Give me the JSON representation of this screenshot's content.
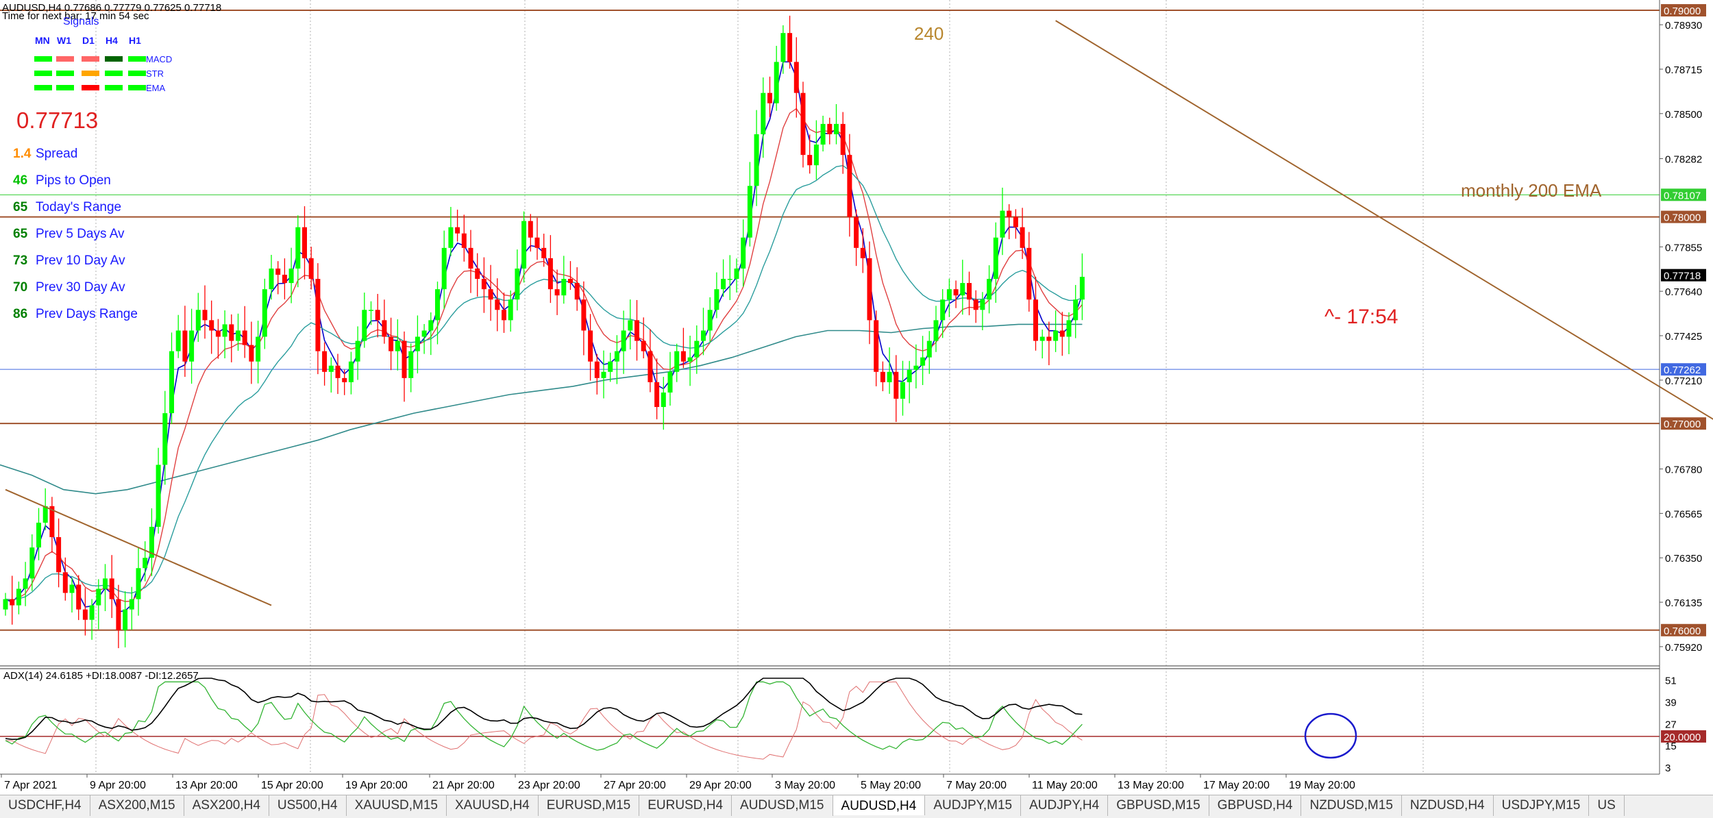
{
  "header": {
    "symbol_line": "AUDUSD,H4  0.77686 0.77779 0.77625 0.77718",
    "timer_text": "Time for next bar: 17 min 54 sec"
  },
  "signals": {
    "title": "Signals",
    "timeframes": [
      "MN",
      "W1",
      "D1",
      "H4",
      "H1"
    ],
    "rows": [
      {
        "label": "MACD",
        "colors": [
          "#00ff00",
          "#ff6666",
          "#ff6666",
          "#006400",
          "#00ff00"
        ]
      },
      {
        "label": "STR",
        "colors": [
          "#00ff00",
          "#00ff00",
          "#ffa500",
          "#00ff00",
          "#00ff00"
        ]
      },
      {
        "label": "EMA",
        "colors": [
          "#00ff00",
          "#00ff00",
          "#ff0000",
          "#00ff00",
          "#00ff00"
        ]
      }
    ]
  },
  "info_panel": {
    "price": "0.77713",
    "rows": [
      {
        "value": "1.4",
        "label": "Spread",
        "value_color": "#ff8c00"
      },
      {
        "value": "46",
        "label": "Pips to Open",
        "value_color": "#00c000"
      },
      {
        "value": "65",
        "label": "Today's Range",
        "value_color": "#008000"
      },
      {
        "value": "65",
        "label": "Prev 5 Days Av",
        "value_color": "#008000"
      },
      {
        "value": "73",
        "label": "Prev 10 Day Av",
        "value_color": "#008000"
      },
      {
        "value": "70",
        "label": "Prev 30 Day Av",
        "value_color": "#008000"
      },
      {
        "value": "86",
        "label": "Prev Days Range",
        "value_color": "#008000"
      }
    ]
  },
  "annotations": {
    "peak_label": "240",
    "ema_label": "monthly 200 EMA",
    "countdown_label": "^- 17:54"
  },
  "price_axis": {
    "ticks": [
      "0.78930",
      "0.78715",
      "0.78500",
      "0.78282",
      "0.77855",
      "0.77640",
      "0.77425",
      "0.77210",
      "0.76780",
      "0.76565",
      "0.76350",
      "0.76135",
      "0.75920"
    ],
    "tick_values": [
      0.7893,
      0.78715,
      0.785,
      0.78282,
      0.77855,
      0.7764,
      0.77425,
      0.7721,
      0.7678,
      0.76565,
      0.7635,
      0.76135,
      0.7592
    ],
    "price_range": [
      0.7585,
      0.7901
    ],
    "levels": [
      {
        "label": "0.79000",
        "value": 0.79,
        "color": "#a0522d"
      },
      {
        "label": "0.78107",
        "value": 0.78107,
        "color": "#32cd32"
      },
      {
        "label": "0.78000",
        "value": 0.78,
        "color": "#a0522d"
      },
      {
        "label": "0.77718",
        "value": 0.77718,
        "color": "#000000"
      },
      {
        "label": "0.77262",
        "value": 0.77262,
        "color": "#4169e1"
      },
      {
        "label": "0.77000",
        "value": 0.77,
        "color": "#a0522d"
      },
      {
        "label": "0.76000",
        "value": 0.76,
        "color": "#a0522d"
      }
    ]
  },
  "adx": {
    "label": "ADX(14) 24.6185 +DI:18.0087 -DI:12.2657",
    "ticks": [
      "51",
      "39",
      "27",
      "15",
      "3"
    ],
    "tick_values": [
      51,
      39,
      27,
      15,
      3
    ],
    "level_label": "20.0000",
    "level_value": 20,
    "range": [
      0,
      55
    ]
  },
  "time_axis": {
    "labels": [
      "7 Apr 2021",
      "9 Apr 20:00",
      "13 Apr 20:00",
      "15 Apr 20:00",
      "19 Apr 20:00",
      "21 Apr 20:00",
      "23 Apr 20:00",
      "27 Apr 20:00",
      "29 Apr 20:00",
      "3 May 20:00",
      "5 May 20:00",
      "7 May 20:00",
      "11 May 20:00",
      "13 May 20:00",
      "17 May 20:00",
      "19 May 20:00"
    ]
  },
  "tabs": [
    "USDCHF,H4",
    "ASX200,M15",
    "ASX200,H4",
    "US500,H4",
    "XAUUSD,M15",
    "XAUUSD,H4",
    "EURUSD,M15",
    "EURUSD,H4",
    "AUDUSD,M15",
    "AUDUSD,H4",
    "AUDJPY,M15",
    "AUDJPY,H4",
    "GBPUSD,M15",
    "GBPUSD,H4",
    "NZDUSD,M15",
    "NZDUSD,H4",
    "USDJPY,M15",
    "US"
  ],
  "active_tab_index": 9,
  "colors": {
    "bull": "#00ff00",
    "bear": "#ff0000",
    "ema_fast": "#0000cd",
    "ema_mid": "#e04040",
    "ema_slow": "#2a9d9d",
    "ema_200": "#2f8a8a",
    "trendline": "#a0642d",
    "adx_line": "#000000",
    "plus_di": "#32b432",
    "minus_di": "#e07070"
  },
  "chart_data": {
    "type": "candlestick",
    "symbol": "AUDUSD",
    "timeframe": "H4",
    "close_series": [
      0.7615,
      0.7612,
      0.762,
      0.7625,
      0.764,
      0.7652,
      0.766,
      0.7645,
      0.7628,
      0.7618,
      0.7622,
      0.761,
      0.7605,
      0.7612,
      0.762,
      0.7625,
      0.7615,
      0.76,
      0.761,
      0.7615,
      0.763,
      0.7635,
      0.765,
      0.768,
      0.7705,
      0.7735,
      0.7745,
      0.773,
      0.7745,
      0.7755,
      0.775,
      0.7745,
      0.7742,
      0.7748,
      0.774,
      0.7745,
      0.7738,
      0.773,
      0.7742,
      0.7765,
      0.7775,
      0.7772,
      0.7768,
      0.7775,
      0.7795,
      0.778,
      0.777,
      0.7735,
      0.7725,
      0.7728,
      0.7722,
      0.772,
      0.773,
      0.774,
      0.7755,
      0.7755,
      0.775,
      0.7742,
      0.7735,
      0.774,
      0.7722,
      0.7735,
      0.7742,
      0.7745,
      0.775,
      0.7765,
      0.7785,
      0.7795,
      0.7792,
      0.7785,
      0.7775,
      0.777,
      0.7765,
      0.776,
      0.7755,
      0.775,
      0.776,
      0.7775,
      0.7798,
      0.779,
      0.7785,
      0.778,
      0.7765,
      0.7762,
      0.777,
      0.7768,
      0.776,
      0.7745,
      0.773,
      0.7722,
      0.7725,
      0.773,
      0.7735,
      0.7745,
      0.775,
      0.774,
      0.7735,
      0.772,
      0.7708,
      0.7715,
      0.7725,
      0.7735,
      0.773,
      0.7732,
      0.774,
      0.7745,
      0.7755,
      0.7765,
      0.777,
      0.777,
      0.7775,
      0.779,
      0.7815,
      0.784,
      0.786,
      0.7855,
      0.7875,
      0.7889,
      0.7875,
      0.786,
      0.783,
      0.7825,
      0.7835,
      0.7845,
      0.784,
      0.7845,
      0.783,
      0.78,
      0.7785,
      0.778,
      0.775,
      0.7725,
      0.772,
      0.7725,
      0.7712,
      0.772,
      0.7726,
      0.7728,
      0.7732,
      0.774,
      0.775,
      0.776,
      0.7765,
      0.7762,
      0.7768,
      0.776,
      0.7755,
      0.776,
      0.777,
      0.779,
      0.7803,
      0.78,
      0.7795,
      0.7785,
      0.776,
      0.774,
      0.7742,
      0.774,
      0.7745,
      0.7742,
      0.775,
      0.776,
      0.7771
    ],
    "ema_200_series": [
      0.768,
      0.7675,
      0.7668,
      0.7666,
      0.7668,
      0.7672,
      0.7676,
      0.768,
      0.7684,
      0.7688,
      0.7692,
      0.7697,
      0.7701,
      0.7705,
      0.7708,
      0.7711,
      0.7714,
      0.7716,
      0.7718,
      0.7721,
      0.7723,
      0.7725,
      0.7728,
      0.7732,
      0.7737,
      0.7742,
      0.7745,
      0.7745,
      0.7744,
      0.7746,
      0.7747,
      0.7747,
      0.7748,
      0.7748,
      0.7748
    ],
    "trendlines": [
      {
        "from_bar": 0,
        "from_price": 0.7668,
        "to_bar": 40,
        "to_price": 0.7612
      },
      {
        "from_bar": 158,
        "from_price": 0.7895,
        "to_bar": 258,
        "to_price": 0.77
      }
    ]
  }
}
